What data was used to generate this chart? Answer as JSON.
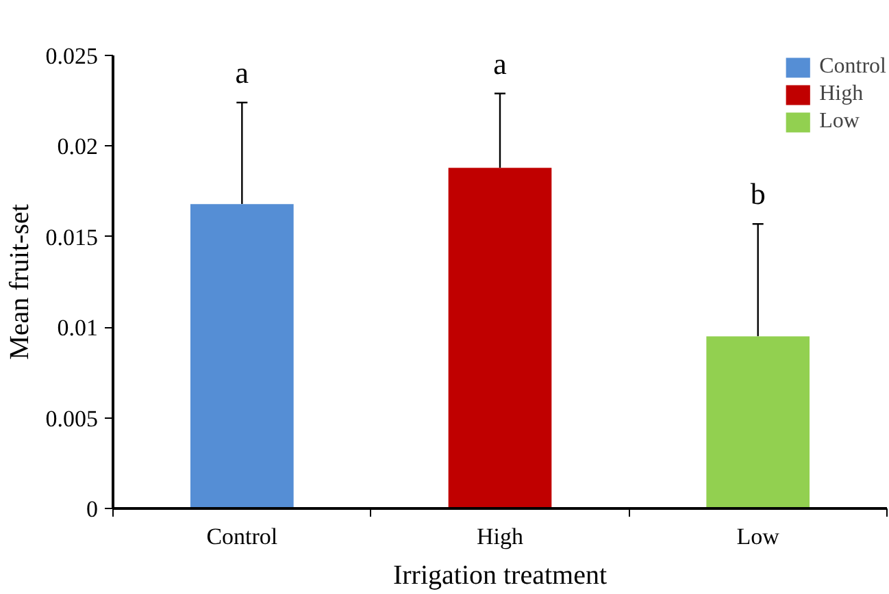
{
  "chart_data": {
    "type": "bar",
    "xlabel": "Irrigation treatment",
    "ylabel": "Mean fruit-set",
    "categories": [
      "Control",
      "High",
      "Low"
    ],
    "series": [
      {
        "name": "Control",
        "color": "#558ed5",
        "values": [
          0.0168,
          null,
          null
        ],
        "errors": [
          [
            0.0168,
            0.0224
          ],
          null,
          null
        ]
      },
      {
        "name": "High",
        "color": "#c00000",
        "values": [
          null,
          0.0188,
          null
        ],
        "errors": [
          null,
          [
            0.0188,
            0.0229
          ],
          null
        ]
      },
      {
        "name": "Low",
        "color": "#92d050",
        "values": [
          null,
          null,
          0.0095
        ],
        "errors": [
          null,
          null,
          [
            0.0095,
            0.0157
          ]
        ]
      }
    ],
    "legend": "top right",
    "ylim": [
      0,
      0.025
    ],
    "yticks": [
      0,
      0.005,
      0.01,
      0.015,
      0.02,
      0.025
    ],
    "annotations": [
      "a",
      "a",
      "b"
    ]
  }
}
